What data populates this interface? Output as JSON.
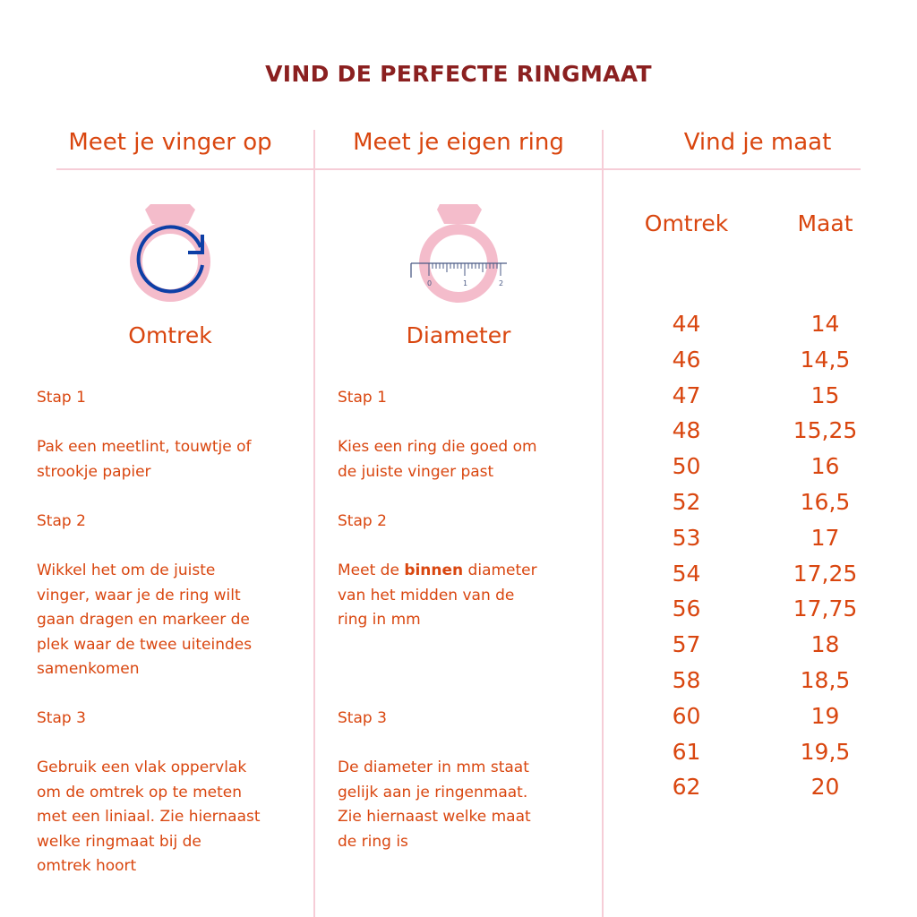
{
  "title": "VIND DE PERFECTE RINGMAAT",
  "colors": {
    "title": "#8b2020",
    "text": "#d9460f",
    "divider": "#f6cdd7",
    "ring": "#f4bccb",
    "arrow": "#0d3fa6",
    "ruler": "#4a5a85"
  },
  "columns": [
    {
      "heading": "Meet je vinger op",
      "icon": "ring-circumference-icon",
      "label": "Omtrek",
      "steps": [
        {
          "title": "Stap 1",
          "lines": [
            "Pak een meetlint, touwtje of",
            "strookje papier"
          ]
        },
        {
          "title": "Stap 2",
          "lines": [
            "Wikkel het om de juiste",
            "vinger, waar je de ring wilt",
            "gaan dragen en markeer de",
            "plek waar de twee uiteindes",
            "samenkomen"
          ]
        },
        {
          "title": "Stap 3",
          "lines": [
            "Gebruik een vlak oppervlak",
            "om de omtrek op te meten",
            "met een liniaal. Zie hiernaast",
            "welke ringmaat bij de",
            "omtrek hoort"
          ]
        }
      ]
    },
    {
      "heading": "Meet je eigen ring",
      "icon": "ring-ruler-icon",
      "label": "Diameter",
      "ruler_labels": [
        "0",
        "1",
        "2"
      ],
      "steps": [
        {
          "title": "Stap 1",
          "lines": [
            "Kies een ring die goed om",
            "de juiste vinger past"
          ]
        },
        {
          "title": "Stap 2",
          "pre": "Meet de ",
          "bold": "binnen",
          "post": " diameter",
          "lines": [
            "van het midden van de",
            "ring in mm"
          ]
        },
        {
          "title": "Stap 3",
          "lines": [
            "De diameter in mm staat",
            "gelijk aan je ringenmaat.",
            "Zie hiernaast welke maat",
            "de ring is"
          ]
        }
      ]
    },
    {
      "heading": "Vind je maat"
    }
  ],
  "table": {
    "headers": [
      "Omtrek",
      "Maat"
    ],
    "rows": [
      [
        "44",
        "14"
      ],
      [
        "46",
        "14,5"
      ],
      [
        "47",
        "15"
      ],
      [
        "48",
        "15,25"
      ],
      [
        "50",
        "16"
      ],
      [
        "52",
        "16,5"
      ],
      [
        "53",
        "17"
      ],
      [
        "54",
        "17,25"
      ],
      [
        "56",
        "17,75"
      ],
      [
        "57",
        "18"
      ],
      [
        "58",
        "18,5"
      ],
      [
        "60",
        "19"
      ],
      [
        "61",
        "19,5"
      ],
      [
        "62",
        "20"
      ]
    ]
  }
}
